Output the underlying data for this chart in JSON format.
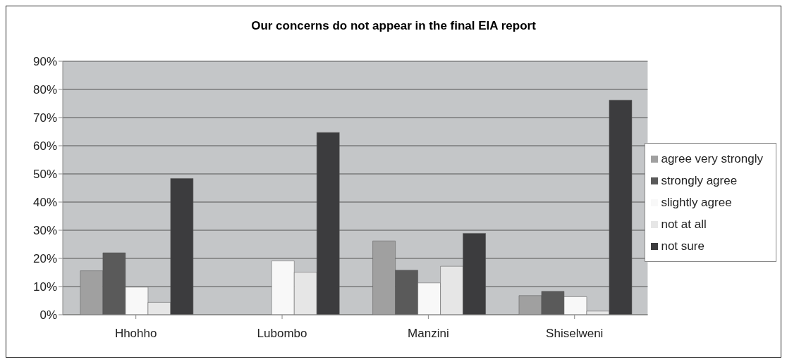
{
  "chart_data": {
    "type": "bar",
    "title": "Our concerns do not appear in the final EIA report",
    "categories": [
      "Hhohho",
      "Lubombo",
      "Manzini",
      "Shiselweni"
    ],
    "series": [
      {
        "name": "agree very strongly",
        "color": "#a0a0a0",
        "values": [
          15.6,
          0,
          26.2,
          6.8
        ]
      },
      {
        "name": "strongly agree",
        "color": "#5a5a5a",
        "values": [
          22,
          0,
          15.8,
          8.3
        ]
      },
      {
        "name": "slightly agree",
        "color": "#f8f8f8",
        "values": [
          9.8,
          19.1,
          11.3,
          6.4
        ]
      },
      {
        "name": "not at all",
        "color": "#e6e6e6",
        "values": [
          4.4,
          15.1,
          17.2,
          1.3
        ]
      },
      {
        "name": "not sure",
        "color": "#3c3c3e",
        "values": [
          48.4,
          64.7,
          28.9,
          76.2
        ]
      }
    ],
    "ylim": [
      0,
      90
    ],
    "yticks": [
      {
        "value": 0,
        "label": "0%"
      },
      {
        "value": 10,
        "label": "10%"
      },
      {
        "value": 20,
        "label": "20%"
      },
      {
        "value": 30,
        "label": "30%"
      },
      {
        "value": 40,
        "label": "40%"
      },
      {
        "value": 50,
        "label": "50%"
      },
      {
        "value": 60,
        "label": "60%"
      },
      {
        "value": 70,
        "label": "70%"
      },
      {
        "value": 80,
        "label": "80%"
      },
      {
        "value": 90,
        "label": "90%"
      }
    ],
    "grid": "y",
    "legend": "right"
  }
}
